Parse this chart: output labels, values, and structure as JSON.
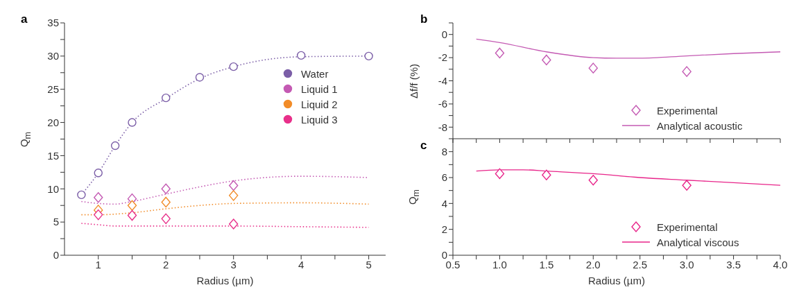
{
  "chart_data": [
    {
      "type": "scatter",
      "title": "a",
      "xlabel": "Radius (µm)",
      "ylabel": "Q$_{m}$",
      "xlim": [
        0.5,
        5.25
      ],
      "ylim": [
        0,
        35
      ],
      "xticks": [
        1,
        {
          "value": 1.5,
          "label": null
        },
        2,
        {
          "value": 2.5,
          "label": null
        },
        3,
        {
          "value": 3.5,
          "label": null
        },
        4,
        {
          "value": 4.5,
          "label": null
        },
        5
      ],
      "yticks": [
        0,
        {
          "value": 2.5,
          "label": null
        },
        5,
        {
          "value": 7.5,
          "label": null
        },
        10,
        {
          "value": 12.5,
          "label": null
        },
        15,
        {
          "value": 17.5,
          "label": null
        },
        20,
        {
          "value": 22.5,
          "label": null
        },
        25,
        {
          "value": 27.5,
          "label": null
        },
        30,
        {
          "value": 32.5,
          "label": null
        },
        35
      ],
      "legend": "top right",
      "grid": false,
      "series": [
        {
          "name": "Water",
          "marker": "circle",
          "color": "#7b5ea7",
          "x": [
            0.75,
            1,
            1.25,
            1.5,
            2,
            2.5,
            3,
            4,
            5
          ],
          "values": [
            9.1,
            12.4,
            16.5,
            20,
            23.7,
            26.8,
            28.4,
            30.1,
            30
          ]
        },
        {
          "name": "Liquid 1",
          "marker": "diamond",
          "color": "#c45ab3",
          "x": [
            1,
            1.5,
            2,
            3
          ],
          "values": [
            8.7,
            8.5,
            10,
            10.5
          ]
        },
        {
          "name": "Liquid 2",
          "marker": "diamond",
          "color": "#f28c28",
          "x": [
            1,
            1.5,
            2,
            3
          ],
          "values": [
            6.8,
            7.5,
            8,
            9
          ]
        },
        {
          "name": "Liquid 3",
          "marker": "diamond",
          "color": "#e8308a",
          "x": [
            1,
            1.5,
            2,
            3
          ],
          "values": [
            6.1,
            6,
            5.5,
            4.7
          ]
        },
        {
          "type": "line",
          "line_style": "dotted",
          "color": "#7b5ea7",
          "x": [
            0.75,
            1,
            1.25,
            1.5,
            2,
            2.5,
            3,
            4,
            5
          ],
          "values": [
            9.1,
            12.4,
            16.5,
            20,
            23.6,
            26.6,
            28.4,
            29.9,
            30
          ]
        },
        {
          "type": "line",
          "line_style": "dotted",
          "color": "#c45ab3",
          "x": [
            0.75,
            1,
            1.25,
            1.5,
            2,
            2.5,
            3,
            4,
            5
          ],
          "values": [
            8.1,
            7.8,
            7.7,
            8.1,
            9.2,
            10.3,
            11.2,
            11.9,
            11.7
          ]
        },
        {
          "type": "line",
          "line_style": "dotted",
          "color": "#f28c28",
          "x": [
            0.75,
            1,
            1.5,
            2,
            2.5,
            3,
            4,
            5
          ],
          "values": [
            6.1,
            6.1,
            6.4,
            7,
            7.5,
            7.8,
            7.9,
            7.7
          ]
        },
        {
          "type": "line",
          "line_style": "dotted",
          "color": "#e8308a",
          "x": [
            0.75,
            1,
            1.25,
            2,
            3,
            4,
            5
          ],
          "values": [
            4.8,
            4.6,
            4.4,
            4.4,
            4.4,
            4.3,
            4.2
          ]
        }
      ]
    },
    {
      "type": "scatter",
      "title": "b",
      "ylabel": "Δf/f (%)",
      "xlim": [
        0.5,
        4.0
      ],
      "ylim": [
        -9,
        1
      ],
      "tick_labels": "y",
      "xticks": [
        0.5,
        {
          "value": 0.75,
          "label": null
        },
        1,
        {
          "value": 1.25,
          "label": null
        },
        1.5,
        {
          "value": 1.75,
          "label": null
        },
        2,
        {
          "value": 2.25,
          "label": null
        },
        2.5,
        {
          "value": 2.75,
          "label": null
        },
        3,
        {
          "value": 3.25,
          "label": null
        },
        3.5,
        {
          "value": 3.75,
          "label": null
        },
        4
      ],
      "yticks": [
        {
          "value": -9,
          "label": null
        },
        -8,
        {
          "value": -7,
          "label": null
        },
        -6,
        {
          "value": -5,
          "label": null
        },
        -4,
        {
          "value": -3,
          "label": null
        },
        -2,
        {
          "value": -1,
          "label": null
        },
        0,
        {
          "value": 1,
          "label": null
        }
      ],
      "legend": "bottom right",
      "grid": false,
      "series": [
        {
          "name": "Experimental",
          "marker": "diamond",
          "color": "#c45ab3",
          "x": [
            1,
            1.5,
            2,
            3
          ],
          "values": [
            -1.6,
            -2.2,
            -2.9,
            -3.2
          ]
        },
        {
          "name": "Analytical acoustic",
          "type": "line",
          "line_style": "solid",
          "color": "#c45ab3",
          "x": [
            0.75,
            1,
            1.5,
            2,
            2.25,
            2.5,
            3,
            3.5,
            4
          ],
          "values": [
            -0.4,
            -0.7,
            -1.5,
            -2.0,
            -2.05,
            -2.05,
            -1.85,
            -1.65,
            -1.5
          ]
        }
      ]
    },
    {
      "type": "scatter",
      "title": "c",
      "xlabel": "Radius (µm)",
      "ylabel": "Q$_{m}$",
      "xlim": [
        0.5,
        4.0
      ],
      "ylim": [
        0,
        9
      ],
      "xticks": [
        0.5,
        {
          "value": 0.75,
          "label": null
        },
        {
          "value": 1,
          "label": "1.0"
        },
        {
          "value": 1.25,
          "label": null
        },
        1.5,
        {
          "value": 1.75,
          "label": null
        },
        {
          "value": 2,
          "label": "2.0"
        },
        {
          "value": 2.25,
          "label": null
        },
        2.5,
        {
          "value": 2.75,
          "label": null
        },
        {
          "value": 3,
          "label": "3.0"
        },
        {
          "value": 3.25,
          "label": null
        },
        3.5,
        {
          "value": 3.75,
          "label": null
        },
        {
          "value": 4,
          "label": "4.0"
        }
      ],
      "yticks": [
        0,
        {
          "value": 1,
          "label": null
        },
        2,
        {
          "value": 3,
          "label": null
        },
        4,
        {
          "value": 5,
          "label": null
        },
        6,
        {
          "value": 7,
          "label": null
        },
        8
      ],
      "legend": "bottom right",
      "grid": false,
      "series": [
        {
          "name": "Experimental",
          "marker": "diamond",
          "color": "#e8258a",
          "x": [
            1,
            1.5,
            2,
            3
          ],
          "values": [
            6.3,
            6.2,
            5.8,
            5.4
          ]
        },
        {
          "name": "Analytical viscous",
          "type": "line",
          "line_style": "solid",
          "color": "#e8258a",
          "x": [
            0.75,
            1,
            1.25,
            1.5,
            2,
            2.5,
            3,
            3.5,
            4
          ],
          "values": [
            6.5,
            6.6,
            6.6,
            6.5,
            6.3,
            6.0,
            5.8,
            5.6,
            5.4
          ]
        }
      ]
    }
  ]
}
